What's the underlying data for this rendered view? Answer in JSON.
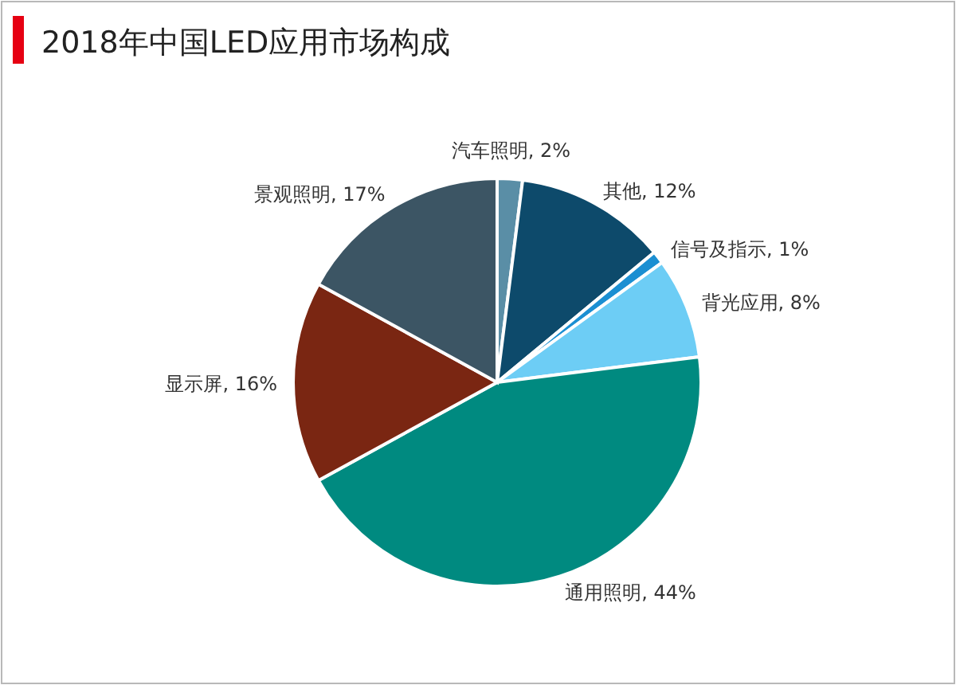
{
  "chart_data": {
    "type": "pie",
    "title": "2018年中国LED应用市场构成",
    "categories": [
      "汽车照明",
      "其他",
      "信号及指示",
      "背光应用",
      "通用照明",
      "显示屏",
      "景观照明"
    ],
    "values": [
      2,
      12,
      1,
      8,
      44,
      16,
      17
    ],
    "colors": [
      "#5a8ea6",
      "#0d4a6b",
      "#1b8fd2",
      "#6dcdf5",
      "#008a80",
      "#7a2612",
      "#3c5564"
    ],
    "value_labels": [
      ", 2%",
      ", 12%",
      ", 1%",
      ", 8%",
      ", 44%",
      ", 16%",
      ", 17%"
    ]
  }
}
